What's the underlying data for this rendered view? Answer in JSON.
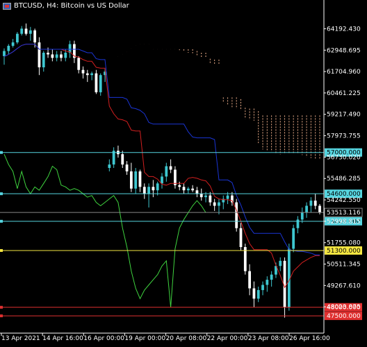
{
  "window": {
    "title": "BTCUSD, H4:  Bitcoin vs US Dollar",
    "symbol_icon": "flag-icon"
  },
  "chart_data": {
    "type": "candlestick",
    "symbol": "BTCUSD",
    "timeframe": "H4",
    "title": "BTCUSD, H4:  Bitcoin vs US Dollar",
    "ylim": [
      46900,
      65300
    ],
    "grid": false,
    "colors": {
      "background": "#000000",
      "bull_candle": "#3ec7d0",
      "bear_candle": "#ffffff",
      "tenkan": "#d31f1f",
      "kijun": "#1a35d6",
      "chikou": "#3fd43f",
      "kumo": "#f0b08c",
      "axis_text": "#ffffff"
    },
    "y_ticks": [
      "64192.430",
      "62948.695",
      "61704.960",
      "60461.225",
      "59217.490",
      "57973.755",
      "56730.020",
      "55486.285",
      "54242.550",
      "52998.815",
      "51755.080",
      "50511.345",
      "49267.610",
      "48023.875"
    ],
    "x_ticks": [
      "13 Apr 2021",
      "14 Apr 16:00",
      "16 Apr 00:00",
      "19 Apr 00:00",
      "20 Apr 08:00",
      "22 Apr 00:00",
      "23 Apr 08:00",
      "26 Apr 16:00"
    ],
    "current_price": "53513.116",
    "levels": [
      {
        "label": "57000.000",
        "price": 57000,
        "color": "#56d5e0",
        "text_color": "#000000"
      },
      {
        "label": "54600.000",
        "price": 54600,
        "color": "#56d5e0",
        "text_color": "#000000"
      },
      {
        "label": "53000.000",
        "price": 53000,
        "color": "#56d5e0",
        "text_color": "#000000"
      },
      {
        "label": "51300.000",
        "price": 51300,
        "color": "#f5e642",
        "text_color": "#000000"
      },
      {
        "label": "48000.000",
        "price": 48000,
        "color": "#e03030",
        "text_color": "#ffffff"
      },
      {
        "label": "47500.000",
        "price": 47500,
        "color": "#e03030",
        "text_color": "#ffffff"
      }
    ],
    "candles": [
      [
        62600,
        63050,
        62100,
        62900
      ],
      [
        62900,
        63300,
        62700,
        63200
      ],
      [
        63200,
        63600,
        63100,
        63400
      ],
      [
        63400,
        64000,
        63300,
        63900
      ],
      [
        63900,
        64350,
        63800,
        64200
      ],
      [
        64200,
        64500,
        63800,
        63900
      ],
      [
        63900,
        64300,
        63500,
        64100
      ],
      [
        64100,
        64200,
        63100,
        63400
      ],
      [
        63400,
        63700,
        61500,
        61950
      ],
      [
        61950,
        62900,
        61700,
        62800
      ],
      [
        62800,
        63100,
        62500,
        62700
      ],
      [
        62700,
        63000,
        62300,
        62500
      ],
      [
        62500,
        62900,
        62300,
        62700
      ],
      [
        62700,
        62900,
        62300,
        62500
      ],
      [
        62500,
        63000,
        62300,
        62800
      ],
      [
        62800,
        63500,
        62500,
        63300
      ],
      [
        63300,
        63500,
        62200,
        62500
      ],
      [
        62500,
        62600,
        61600,
        61800
      ],
      [
        61800,
        62000,
        61300,
        61600
      ],
      [
        61600,
        61800,
        61100,
        61500
      ],
      [
        61500,
        61700,
        61200,
        61600
      ],
      [
        61600,
        61800,
        60400,
        60500
      ],
      [
        60500,
        61600,
        60300,
        61500
      ],
      [
        61500,
        61900,
        61100,
        61700
      ],
      [
        56100,
        56600,
        55900,
        56300
      ],
      [
        56300,
        57300,
        56100,
        57100
      ],
      [
        57100,
        57400,
        56700,
        56900
      ],
      [
        56900,
        57100,
        56100,
        56300
      ],
      [
        56300,
        56500,
        55700,
        55900
      ],
      [
        55900,
        56400,
        54700,
        54900
      ],
      [
        54900,
        56100,
        54600,
        55900
      ],
      [
        55900,
        56000,
        54700,
        55000
      ],
      [
        55000,
        55200,
        54300,
        54600
      ],
      [
        54600,
        55200,
        53800,
        55000
      ],
      [
        55000,
        55400,
        54400,
        54800
      ],
      [
        54800,
        55300,
        54500,
        55200
      ],
      [
        55200,
        55800,
        54900,
        55600
      ],
      [
        55600,
        56400,
        55300,
        56200
      ],
      [
        56200,
        56600,
        55800,
        56000
      ],
      [
        56000,
        56200,
        54900,
        55100
      ],
      [
        55100,
        55300,
        54800,
        55000
      ],
      [
        55000,
        55200,
        54600,
        54800
      ],
      [
        54800,
        55000,
        54600,
        54900
      ],
      [
        54900,
        55100,
        54700,
        54800
      ],
      [
        54800,
        55000,
        54400,
        54600
      ],
      [
        54600,
        54900,
        54200,
        54400
      ],
      [
        54400,
        54700,
        54100,
        54500
      ],
      [
        54500,
        54700,
        53900,
        54100
      ],
      [
        54100,
        54300,
        53600,
        53900
      ],
      [
        53900,
        54300,
        53400,
        54100
      ],
      [
        54100,
        54500,
        53700,
        54300
      ],
      [
        54300,
        54700,
        54000,
        54500
      ],
      [
        54500,
        54700,
        53900,
        54100
      ],
      [
        54100,
        54300,
        52400,
        52600
      ],
      [
        52600,
        52900,
        51300,
        51500
      ],
      [
        51500,
        51700,
        49900,
        50100
      ],
      [
        50100,
        50500,
        48700,
        49100
      ],
      [
        49100,
        49500,
        48000,
        48500
      ],
      [
        48500,
        49200,
        48300,
        49000
      ],
      [
        49000,
        49500,
        48700,
        49300
      ],
      [
        49300,
        49800,
        48900,
        49600
      ],
      [
        49600,
        50100,
        49200,
        49900
      ],
      [
        49900,
        50600,
        49700,
        50400
      ],
      [
        50400,
        50900,
        50100,
        50700
      ],
      [
        50700,
        50900,
        47400,
        48000
      ],
      [
        48000,
        51700,
        47800,
        51400
      ],
      [
        51400,
        52800,
        51200,
        52600
      ],
      [
        52600,
        53300,
        52300,
        53100
      ],
      [
        53100,
        53800,
        52900,
        53500
      ],
      [
        53500,
        54100,
        53200,
        53900
      ],
      [
        53900,
        54400,
        53500,
        54200
      ],
      [
        54200,
        54600,
        53700,
        53900
      ],
      [
        53900,
        54000,
        53400,
        53500
      ]
    ]
  }
}
